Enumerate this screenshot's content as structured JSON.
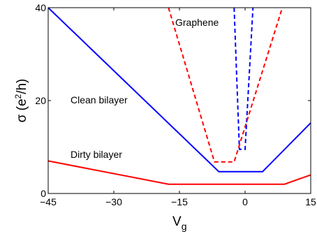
{
  "chart_data": {
    "type": "line",
    "title": "",
    "xlabel": "V_g",
    "ylabel": "σ (e²/h)",
    "xlim": [
      -45,
      15
    ],
    "ylim": [
      0,
      40
    ],
    "x_ticks": [
      -45,
      -30,
      -15,
      0,
      15
    ],
    "x_tick_labels": [
      "−45",
      "−30",
      "−15",
      "0",
      "15"
    ],
    "y_ticks": [
      0,
      20,
      40
    ],
    "y_tick_labels": [
      "0",
      "20",
      "40"
    ],
    "grid": false,
    "series": [
      {
        "name": "Clean bilayer",
        "color": "#0000ff",
        "style": "solid",
        "points": [
          [
            -45,
            40
          ],
          [
            -6,
            4.7
          ],
          [
            4,
            4.7
          ],
          [
            15,
            15.2
          ]
        ]
      },
      {
        "name": "Dirty bilayer",
        "color": "#ff0000",
        "style": "solid",
        "points": [
          [
            -45,
            7
          ],
          [
            -17.5,
            2
          ],
          [
            9,
            2
          ],
          [
            15,
            4
          ]
        ]
      },
      {
        "name": "Graphene",
        "color": "#0000ff",
        "style": "dashed",
        "points": [
          [
            -2.5,
            40
          ],
          [
            -1.3,
            9.5
          ],
          [
            0,
            9.5
          ],
          [
            1.8,
            40
          ]
        ]
      },
      {
        "name": "",
        "color": "#ff0000",
        "style": "dashed",
        "points": [
          [
            -17.5,
            40
          ],
          [
            -7,
            6.8
          ],
          [
            -2.5,
            6.8
          ],
          [
            8.5,
            40
          ]
        ]
      }
    ],
    "annotations": [
      {
        "text": "Graphene",
        "color": "#000000"
      },
      {
        "text": "Clean bilayer",
        "color": "#0000ff"
      },
      {
        "text": "Dirty bilayer",
        "color": "#ff0000"
      }
    ]
  }
}
